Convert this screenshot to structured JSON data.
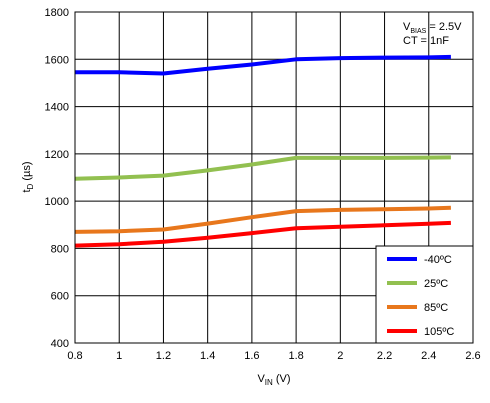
{
  "chart_data": {
    "type": "line",
    "xlabel_main": "V",
    "xlabel_sub": "IN",
    "xlabel_unit": " (V)",
    "ylabel_main": "t",
    "ylabel_sub": "D",
    "ylabel_unit": " (µs)",
    "xlim": [
      0.8,
      2.6
    ],
    "ylim": [
      400,
      1800
    ],
    "xticks": [
      0.8,
      1,
      1.2,
      1.4,
      1.6,
      1.8,
      2,
      2.2,
      2.4,
      2.6
    ],
    "xtick_labels": [
      "0.8",
      "1",
      "1.2",
      "1.4",
      "1.6",
      "1.8",
      "2",
      "2.2",
      "2.4",
      "2.6"
    ],
    "yticks": [
      400,
      600,
      800,
      1000,
      1200,
      1400,
      1600,
      1800
    ],
    "ytick_labels": [
      "400",
      "600",
      "800",
      "1000",
      "1200",
      "1400",
      "1600",
      "1800"
    ],
    "grid": true,
    "annotation": {
      "line1_main": "V",
      "line1_sub": "BIAS",
      "line1_rest": " = 2.5V",
      "line2": "CT = 1nF"
    },
    "legend_position": "bottom-right",
    "series": [
      {
        "name": "-40ºC",
        "color": "#0000ff",
        "points": [
          [
            0.8,
            1545
          ],
          [
            1.0,
            1545
          ],
          [
            1.2,
            1540
          ],
          [
            1.4,
            1560
          ],
          [
            1.6,
            1578
          ],
          [
            1.8,
            1600
          ],
          [
            2.0,
            1605
          ],
          [
            2.2,
            1607
          ],
          [
            2.4,
            1608
          ],
          [
            2.5,
            1610
          ]
        ]
      },
      {
        "name": "25ºC",
        "color": "#92c050",
        "points": [
          [
            0.8,
            1095
          ],
          [
            1.0,
            1100
          ],
          [
            1.2,
            1108
          ],
          [
            1.4,
            1130
          ],
          [
            1.6,
            1155
          ],
          [
            1.8,
            1183
          ],
          [
            2.0,
            1183
          ],
          [
            2.2,
            1183
          ],
          [
            2.4,
            1184
          ],
          [
            2.5,
            1185
          ]
        ]
      },
      {
        "name": "85ºC",
        "color": "#e8771c",
        "points": [
          [
            0.8,
            870
          ],
          [
            1.0,
            873
          ],
          [
            1.2,
            880
          ],
          [
            1.4,
            905
          ],
          [
            1.6,
            932
          ],
          [
            1.8,
            958
          ],
          [
            2.0,
            963
          ],
          [
            2.2,
            966
          ],
          [
            2.4,
            969
          ],
          [
            2.5,
            972
          ]
        ]
      },
      {
        "name": "105ºC",
        "color": "#ff0000",
        "points": [
          [
            0.8,
            812
          ],
          [
            1.0,
            818
          ],
          [
            1.2,
            828
          ],
          [
            1.4,
            845
          ],
          [
            1.6,
            865
          ],
          [
            1.8,
            885
          ],
          [
            2.0,
            892
          ],
          [
            2.2,
            898
          ],
          [
            2.4,
            904
          ],
          [
            2.5,
            908
          ]
        ]
      }
    ]
  }
}
